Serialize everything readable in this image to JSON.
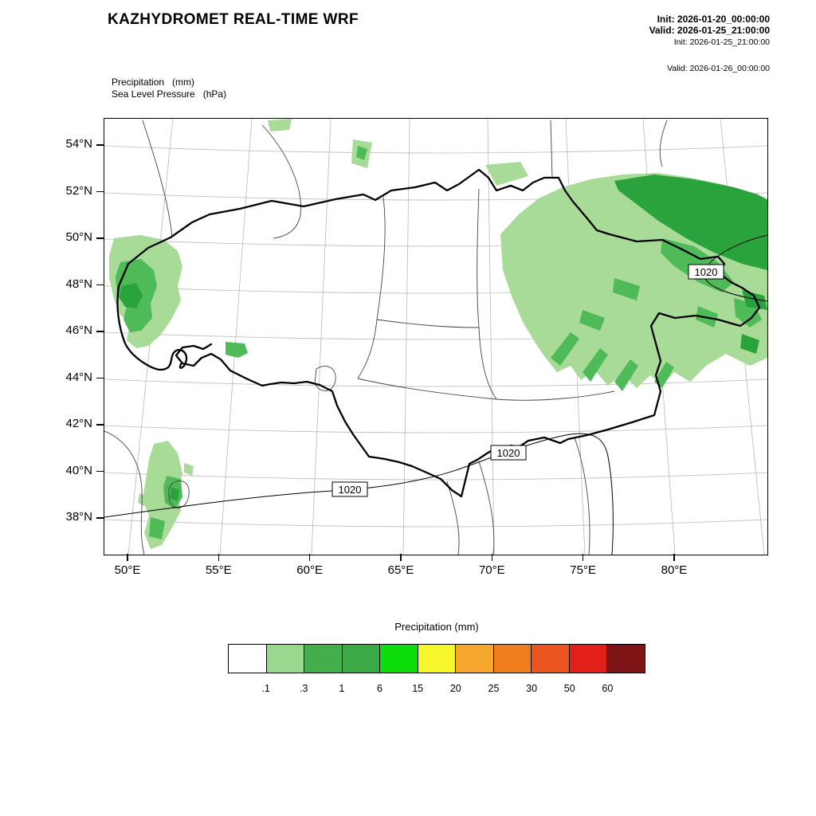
{
  "header": {
    "title": "KAZHYDROMET REAL-TIME WRF",
    "init_primary": "Init: 2026-01-20_00:00:00",
    "valid_primary": "Valid: 2026-01-25_21:00:00",
    "init_secondary": "Init: 2026-01-25_21:00:00",
    "valid_secondary": "Valid: 2026-01-26_00:00:00"
  },
  "map": {
    "field_label_1": "Precipitation   (mm)",
    "field_label_2": "Sea Level Pressure   (hPa)",
    "pressure_label": "1020",
    "y_axis": {
      "labels": [
        "54°N",
        "52°N",
        "50°N",
        "48°N",
        "46°N",
        "44°N",
        "42°N",
        "40°N",
        "38°N"
      ]
    },
    "x_axis": {
      "labels": [
        "50°E",
        "55°E",
        "60°E",
        "65°E",
        "70°E",
        "75°E",
        "80°E"
      ]
    }
  },
  "legend": {
    "title": "Precipitation (mm)",
    "tick_labels": [
      ".1",
      ".3",
      "1",
      "6",
      "15",
      "20",
      "25",
      "30",
      "50",
      "60"
    ],
    "colors": [
      "#ffffff",
      "#9bd88f",
      "#44ae4c",
      "#3aa946",
      "#0ddd0d",
      "#f6f62c",
      "#f6a82e",
      "#f07e1f",
      "#ea5420",
      "#e31f1a",
      "#7e1416"
    ]
  }
}
